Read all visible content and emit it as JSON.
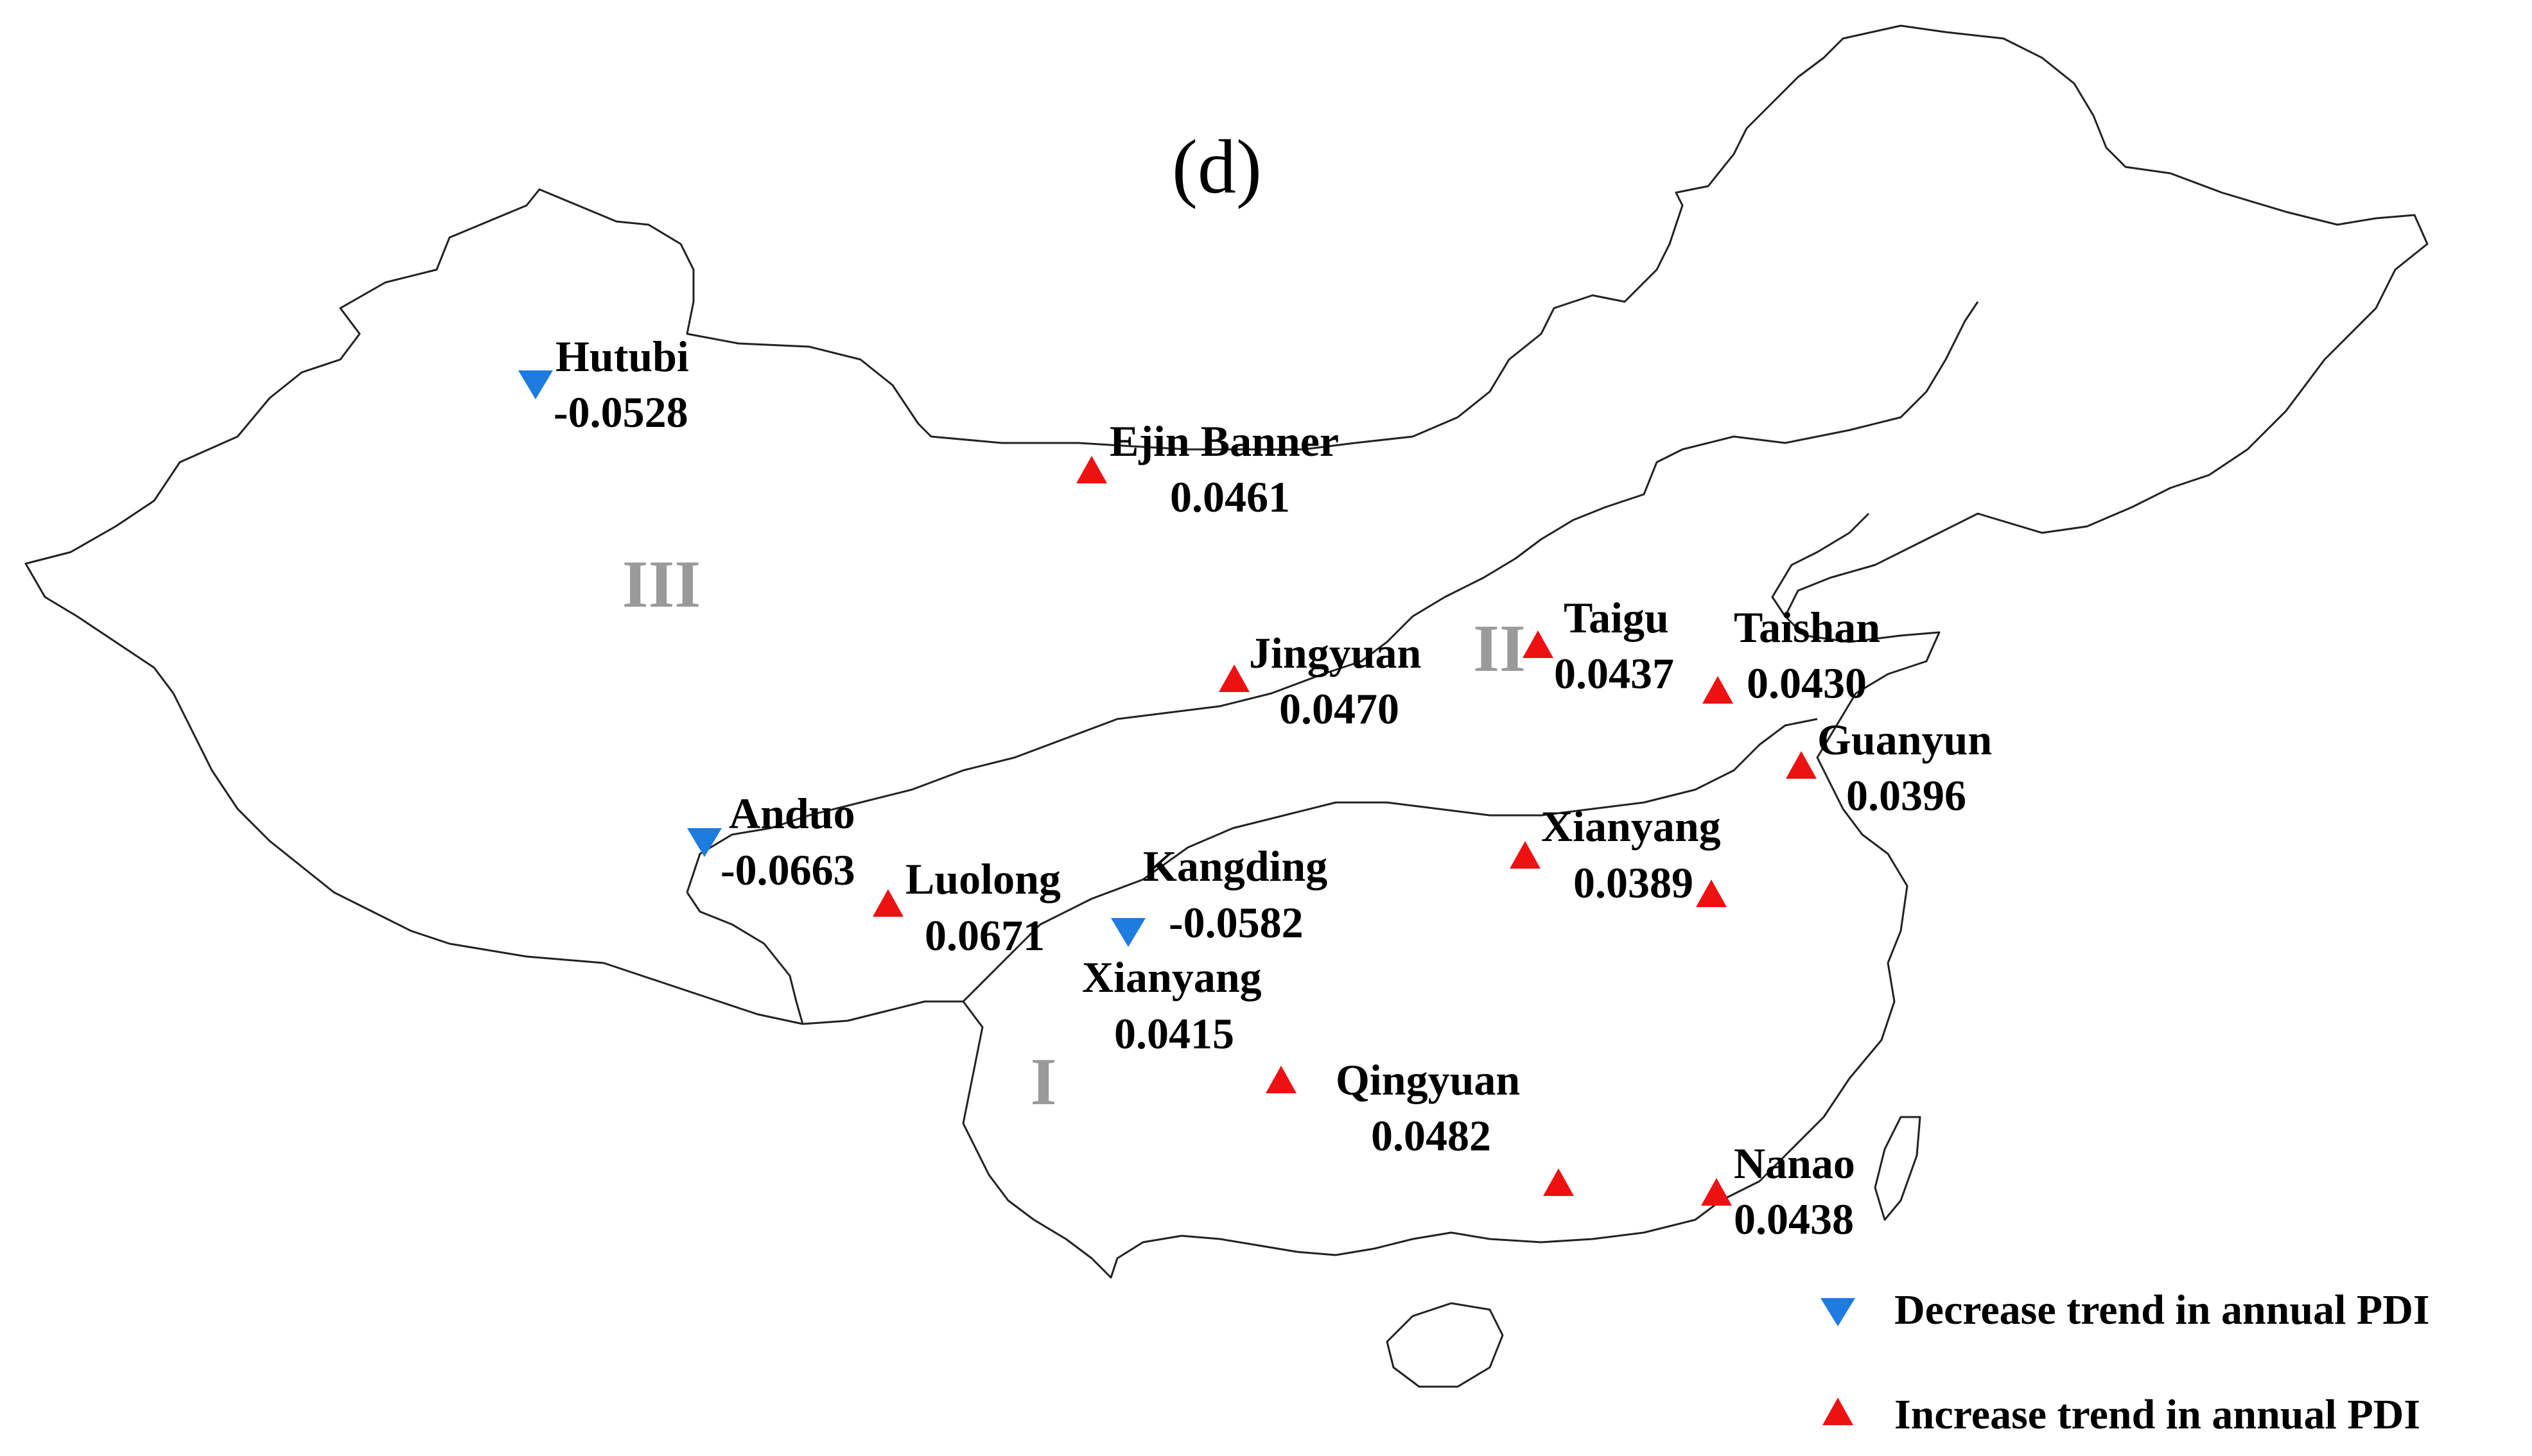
{
  "panel_label": "(d)",
  "colors": {
    "decrease": "#1e7be0",
    "increase": "#ee1111",
    "outline": "#222222",
    "region": "#9a9a9a"
  },
  "regions": [
    {
      "id": "I",
      "label": "I"
    },
    {
      "id": "II",
      "label": "II"
    },
    {
      "id": "III",
      "label": "III"
    }
  ],
  "stations": [
    {
      "name": "Hutubi",
      "value": "-0.0528",
      "trend": "decrease"
    },
    {
      "name": "Ejin Banner",
      "value": "0.0461",
      "trend": "increase"
    },
    {
      "name": "Jingyuan",
      "value": "0.0470",
      "trend": "increase"
    },
    {
      "name": "Taigu",
      "value": "0.0437",
      "trend": "increase"
    },
    {
      "name": "Taishan",
      "value": "0.0430",
      "trend": "increase"
    },
    {
      "name": "Guanyun",
      "value": "0.0396",
      "trend": "increase"
    },
    {
      "name": "Anduo",
      "value": "-0.0663",
      "trend": "decrease"
    },
    {
      "name": "Luolong",
      "value": "0.0671",
      "trend": "increase"
    },
    {
      "name": "Kangding",
      "value": "-0.0582",
      "trend": "decrease"
    },
    {
      "name": "Xianyang",
      "value": "0.0389",
      "trend": "increase"
    },
    {
      "name": "Xianyang",
      "value": "0.0415",
      "trend": "increase"
    },
    {
      "name": "Qingyuan",
      "value": "0.0482",
      "trend": "increase"
    },
    {
      "name": "Nanao",
      "value": "0.0438",
      "trend": "increase"
    }
  ],
  "unlabeled_markers": [
    {
      "trend": "increase"
    },
    {
      "trend": "increase"
    }
  ],
  "legend": {
    "decrease_label": "Decrease trend in annual PDI",
    "increase_label": "Increase trend in annual PDI"
  }
}
